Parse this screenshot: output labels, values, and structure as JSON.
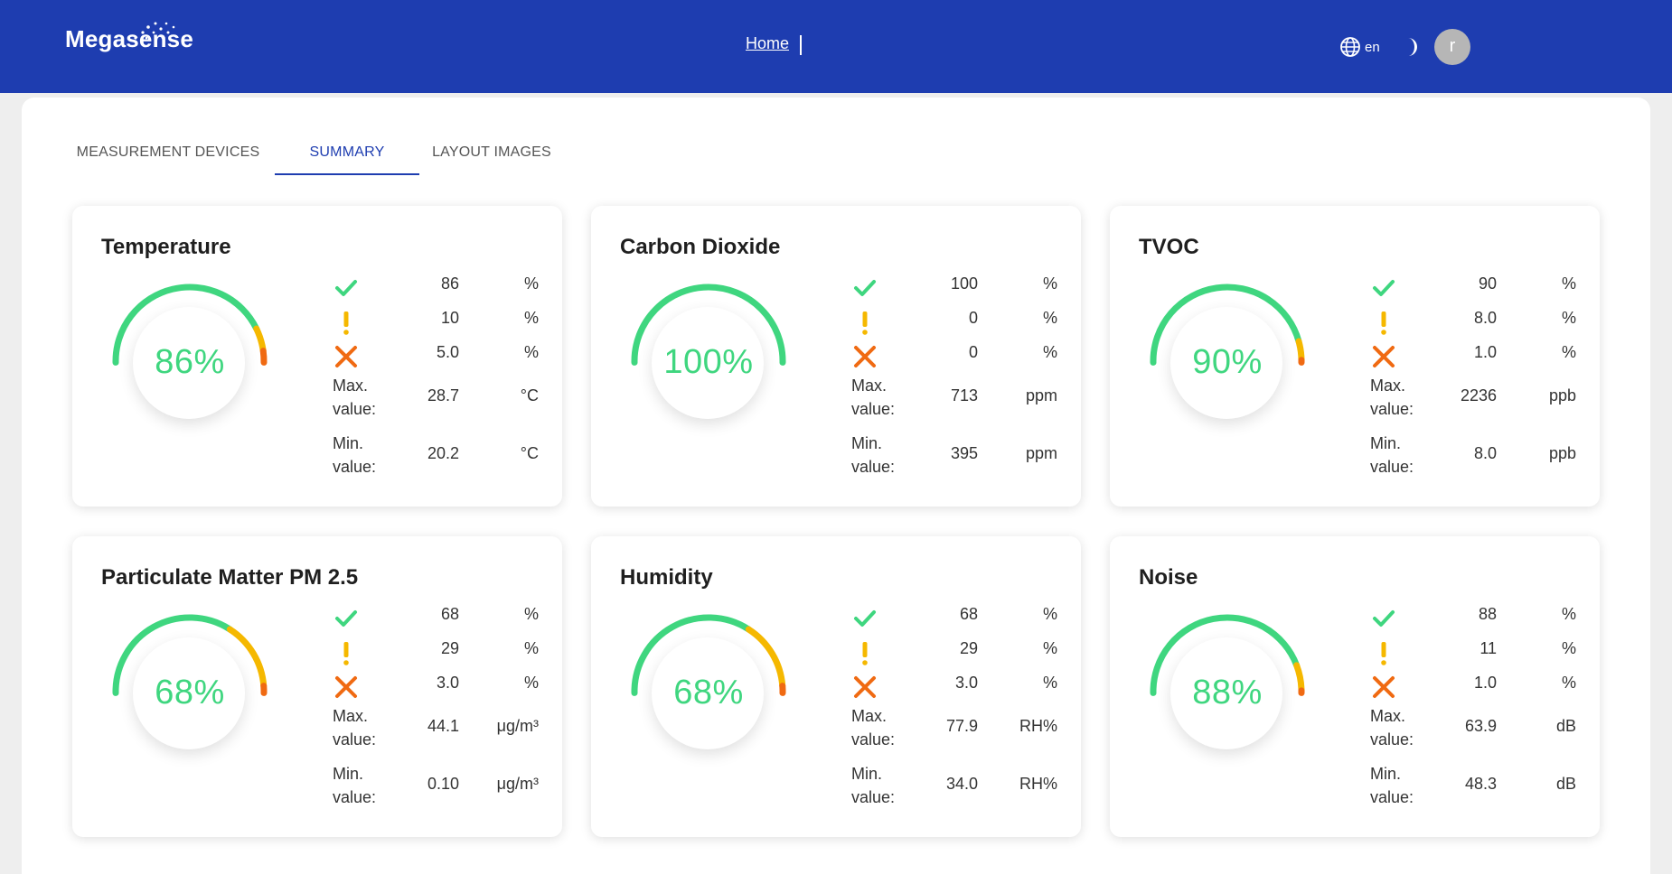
{
  "header": {
    "logo_text": "Megasense",
    "nav_home": "Home",
    "language": "en",
    "avatar_initial": "r",
    "bg_color": "#1e3db0"
  },
  "tabs": [
    {
      "label": "MEASUREMENT DEVICES",
      "active": false
    },
    {
      "label": "SUMMARY",
      "active": true
    },
    {
      "label": "LAYOUT IMAGES",
      "active": false
    }
  ],
  "stat_labels": {
    "max": [
      "Max.",
      "value:"
    ],
    "min": [
      "Min.",
      "value:"
    ]
  },
  "colors": {
    "ok": "#3fd67f",
    "warn": "#f5b800",
    "error": "#f06a12"
  },
  "cards": [
    {
      "title": "Temperature",
      "gauge_label": "86%",
      "ok_pct": 86,
      "warn_pct": 10,
      "err_pct": 5,
      "ok": "86",
      "ok_unit": "%",
      "warn": "10",
      "warn_unit": "%",
      "err": "5.0",
      "err_unit": "%",
      "max": "28.7",
      "max_unit": "°C",
      "min": "20.2",
      "min_unit": "°C"
    },
    {
      "title": "Carbon Dioxide",
      "gauge_label": "100%",
      "ok_pct": 100,
      "warn_pct": 0,
      "err_pct": 0,
      "ok": "100",
      "ok_unit": "%",
      "warn": "0",
      "warn_unit": "%",
      "err": "0",
      "err_unit": "%",
      "max": "713",
      "max_unit": "ppm",
      "min": "395",
      "min_unit": "ppm"
    },
    {
      "title": "TVOC",
      "gauge_label": "90%",
      "ok_pct": 90,
      "warn_pct": 8,
      "err_pct": 1,
      "ok": "90",
      "ok_unit": "%",
      "warn": "8.0",
      "warn_unit": "%",
      "err": "1.0",
      "err_unit": "%",
      "max": "2236",
      "max_unit": "ppb",
      "min": "8.0",
      "min_unit": "ppb"
    },
    {
      "title": "Particulate Matter PM 2.5",
      "gauge_label": "68%",
      "ok_pct": 68,
      "warn_pct": 29,
      "err_pct": 3,
      "ok": "68",
      "ok_unit": "%",
      "warn": "29",
      "warn_unit": "%",
      "err": "3.0",
      "err_unit": "%",
      "max": "44.1",
      "max_unit": "μg/m³",
      "min": "0.10",
      "min_unit": "μg/m³"
    },
    {
      "title": "Humidity",
      "gauge_label": "68%",
      "ok_pct": 68,
      "warn_pct": 29,
      "err_pct": 3,
      "ok": "68",
      "ok_unit": "%",
      "warn": "29",
      "warn_unit": "%",
      "err": "3.0",
      "err_unit": "%",
      "max": "77.9",
      "max_unit": "RH%",
      "min": "34.0",
      "min_unit": "RH%"
    },
    {
      "title": "Noise",
      "gauge_label": "88%",
      "ok_pct": 88,
      "warn_pct": 11,
      "err_pct": 1,
      "ok": "88",
      "ok_unit": "%",
      "warn": "11",
      "warn_unit": "%",
      "err": "1.0",
      "err_unit": "%",
      "max": "63.9",
      "max_unit": "dB",
      "min": "48.3",
      "min_unit": "dB"
    }
  ]
}
